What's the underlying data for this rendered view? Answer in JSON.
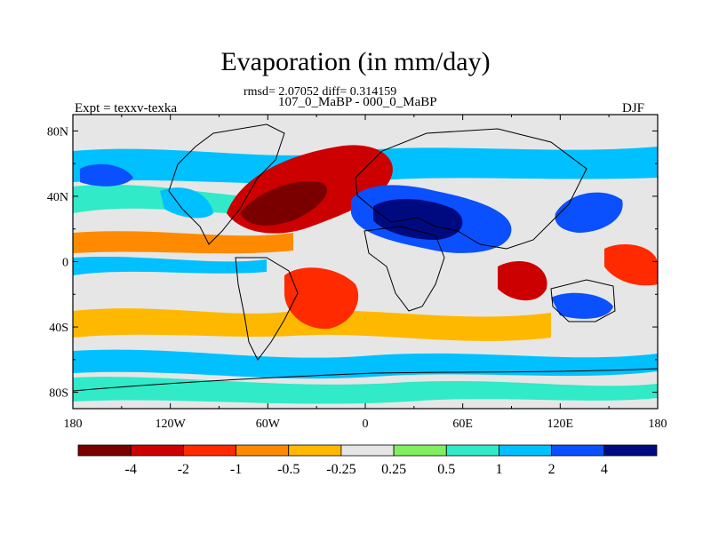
{
  "title": "Evaporation (in mm/day)",
  "stats": "rmsd= 2.07052 diff= 0.314159",
  "subtitle": "107_0_MaBP - 000_0_MaBP",
  "experiment": "Expt = texxv-texka",
  "season": "DJF",
  "axes": {
    "lon_labels": [
      "180",
      "120W",
      "60W",
      "0",
      "60E",
      "120E",
      "180"
    ],
    "lat_labels": [
      "80N",
      "40N",
      "0",
      "40S",
      "80S"
    ]
  },
  "colorbar": {
    "colors": [
      "#7a0000",
      "#cc0000",
      "#ff2a00",
      "#ff8a00",
      "#ffb800",
      "#e6e6e6",
      "#80ee60",
      "#30eac8",
      "#00c0ff",
      "#0a50ff",
      "#000a80"
    ],
    "labels": [
      "-4",
      "-2",
      "-1",
      "-0.5",
      "-0.25",
      "0.25",
      "0.5",
      "1",
      "2",
      "4"
    ]
  }
}
